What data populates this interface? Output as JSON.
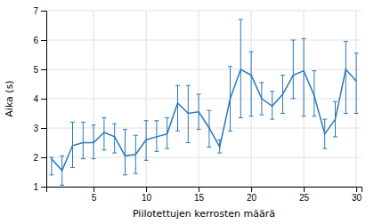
{
  "chart_data": {
    "type": "line",
    "x": [
      1,
      2,
      3,
      4,
      5,
      6,
      7,
      8,
      9,
      10,
      11,
      12,
      13,
      14,
      15,
      16,
      17,
      18,
      19,
      20,
      21,
      22,
      23,
      24,
      25,
      26,
      27,
      28,
      29,
      30
    ],
    "values": [
      1.95,
      1.55,
      2.4,
      2.5,
      2.5,
      2.85,
      2.7,
      2.05,
      2.1,
      2.6,
      2.7,
      2.8,
      3.85,
      3.5,
      3.55,
      3.0,
      2.35,
      4.0,
      5.0,
      4.8,
      4.0,
      3.75,
      4.15,
      4.8,
      4.95,
      4.1,
      2.8,
      3.3,
      5.0,
      4.6
    ],
    "error_low": [
      0.55,
      0.5,
      0.75,
      0.55,
      0.55,
      0.6,
      0.55,
      0.65,
      0.65,
      0.7,
      0.5,
      0.5,
      0.95,
      1.0,
      0.6,
      0.65,
      0.2,
      1.1,
      1.65,
      1.4,
      0.55,
      0.45,
      0.65,
      0.8,
      1.55,
      0.7,
      0.5,
      0.6,
      1.5,
      1.1
    ],
    "error_high": [
      0.05,
      0.5,
      0.8,
      0.7,
      0.6,
      0.5,
      0.45,
      0.9,
      0.65,
      0.65,
      0.55,
      0.55,
      0.6,
      0.95,
      0.6,
      0.6,
      0.25,
      1.1,
      1.7,
      0.8,
      0.55,
      0.5,
      0.65,
      1.2,
      1.1,
      0.85,
      0.5,
      0.6,
      0.95,
      0.95
    ],
    "color": "#2878BE",
    "xlabel": "Piilotettujen kerrosten määrä",
    "ylabel": "Aika (s)",
    "xlim": [
      0.5,
      30.5
    ],
    "ylim": [
      1,
      7
    ],
    "xticks": [
      5,
      10,
      15,
      20,
      25,
      30
    ],
    "yticks": [
      1,
      2,
      3,
      4,
      5,
      6,
      7
    ],
    "grid": true
  }
}
